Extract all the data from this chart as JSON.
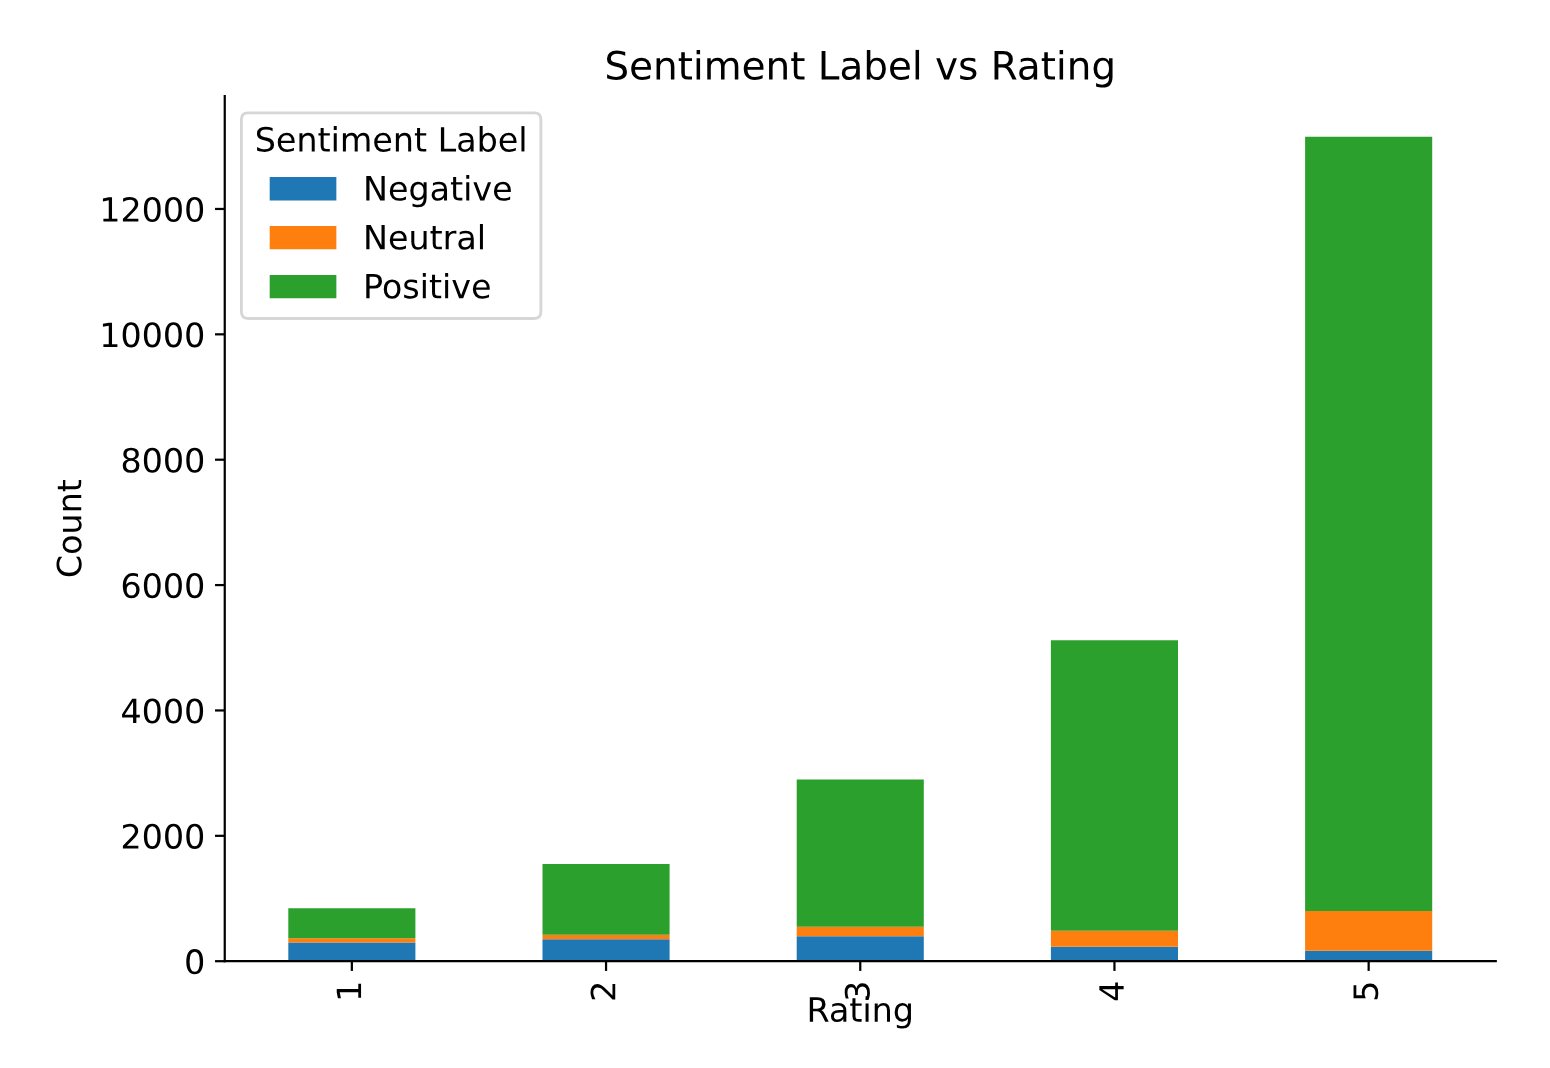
{
  "chart_data": {
    "type": "bar",
    "stacked": true,
    "title": "Sentiment Label vs Rating",
    "xlabel": "Rating",
    "ylabel": "Count",
    "legend_title": "Sentiment Label",
    "categories": [
      "1",
      "2",
      "3",
      "4",
      "5"
    ],
    "series": [
      {
        "name": "Negative",
        "color": "#1f77b4",
        "values": [
          300,
          350,
          400,
          230,
          165
        ]
      },
      {
        "name": "Neutral",
        "color": "#ff7f0e",
        "values": [
          65,
          70,
          150,
          255,
          635
        ]
      },
      {
        "name": "Positive",
        "color": "#2ca02c",
        "values": [
          480,
          1130,
          2350,
          4635,
          12350
        ]
      }
    ],
    "ylim": [
      0,
      13800
    ],
    "yticks": [
      0,
      2000,
      4000,
      6000,
      8000,
      10000,
      12000
    ],
    "grid": false,
    "legend": "top left"
  }
}
